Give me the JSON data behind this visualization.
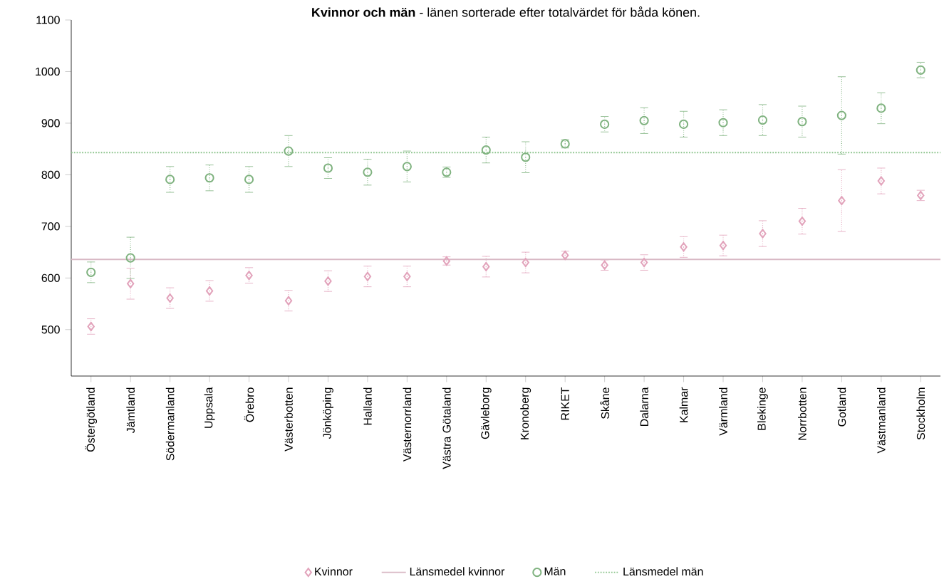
{
  "chart_data": {
    "type": "scatter",
    "title": "**Kvinnor och män** - länen sorterade efter totalvärdet för båda könen.",
    "categories": [
      "Östergötland",
      "Jämtland",
      "Södermanland",
      "Uppsala",
      "Örebro",
      "Västerbotten",
      "Jönköping",
      "Halland",
      "Västernorrland",
      "Västra Götaland",
      "Gävleborg",
      "Kronoberg",
      "RIKET",
      "Skåne",
      "Dalarna",
      "Kalmar",
      "Värmland",
      "Blekinge",
      "Norrbotten",
      "Gotland",
      "Västmanland",
      "Stockholm"
    ],
    "series": [
      {
        "name": "Kvinnor",
        "color": "#e2a3bb",
        "marker": "diamond",
        "values": [
          506,
          589,
          561,
          575,
          605,
          556,
          594,
          603,
          603,
          633,
          622,
          630,
          644,
          625,
          630,
          660,
          663,
          686,
          710,
          750,
          788,
          760
        ],
        "errors": [
          15,
          30,
          20,
          20,
          15,
          20,
          20,
          20,
          20,
          8,
          20,
          20,
          8,
          10,
          15,
          20,
          20,
          25,
          25,
          60,
          25,
          10
        ]
      },
      {
        "name": "Män",
        "color": "#7fb27f",
        "marker": "circle",
        "values": [
          611,
          639,
          791,
          794,
          791,
          846,
          813,
          805,
          816,
          805,
          848,
          834,
          860,
          898,
          905,
          898,
          901,
          906,
          903,
          915,
          929,
          1003
        ],
        "errors": [
          20,
          40,
          25,
          25,
          25,
          30,
          20,
          25,
          30,
          10,
          25,
          30,
          8,
          15,
          25,
          25,
          25,
          30,
          30,
          75,
          30,
          15
        ]
      }
    ],
    "ref_lines": [
      {
        "axis": "y",
        "value": 636,
        "label": "Länsmedel kvinnor",
        "color": "#d8b8c4",
        "line_style": "solid"
      },
      {
        "axis": "y",
        "value": 843,
        "label": "Länsmedel män",
        "color": "#8cc48c",
        "line_style": "dotted"
      }
    ],
    "ylim": [
      410,
      1100
    ],
    "yticks": [
      500,
      600,
      700,
      800,
      900,
      1000,
      1100
    ],
    "grid": false,
    "legend": "bottom"
  }
}
